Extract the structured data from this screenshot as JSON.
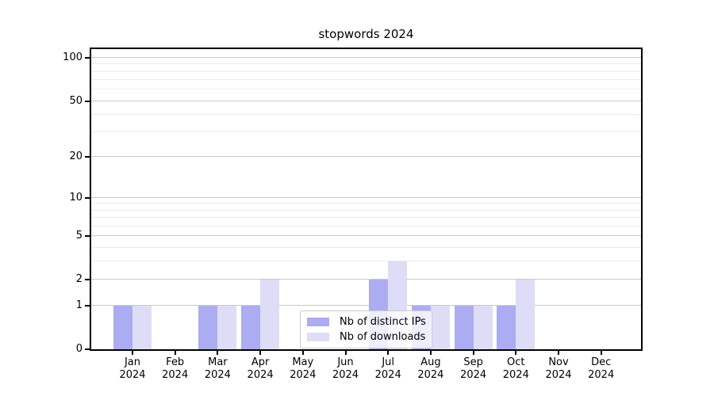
{
  "chart_data": {
    "type": "bar",
    "title": "stopwords 2024",
    "categories": [
      "Jan",
      "Feb",
      "Mar",
      "Apr",
      "May",
      "Jun",
      "Jul",
      "Aug",
      "Sep",
      "Oct",
      "Nov",
      "Dec"
    ],
    "category_year": "2024",
    "series": [
      {
        "name": "Nb of distinct IPs",
        "color": "#acacf2",
        "values": [
          1,
          0,
          1,
          1,
          0,
          0,
          2,
          1,
          1,
          1,
          0,
          0
        ]
      },
      {
        "name": "Nb of downloads",
        "color": "#ddddf8",
        "values": [
          1,
          0,
          1,
          2,
          0,
          0,
          3,
          1,
          1,
          2,
          0,
          0
        ]
      }
    ],
    "y_axis": {
      "scale": "log1p",
      "major_ticks": [
        0,
        1,
        2,
        5,
        10,
        20,
        50,
        100
      ],
      "minor_ticks": [
        3,
        4,
        6,
        7,
        8,
        9,
        30,
        40,
        60,
        70,
        80,
        90
      ],
      "top_value": 115
    },
    "x_axis": {
      "label": "",
      "tick_format": "Month over Year"
    },
    "legend": {
      "position": "bottom-center"
    },
    "grid": true,
    "ylim": [
      0,
      115
    ]
  },
  "colors": {
    "major_grid": "#c9c9c9",
    "minor_grid": "#ebebeb",
    "axis": "#000000",
    "background": "#ffffff"
  }
}
